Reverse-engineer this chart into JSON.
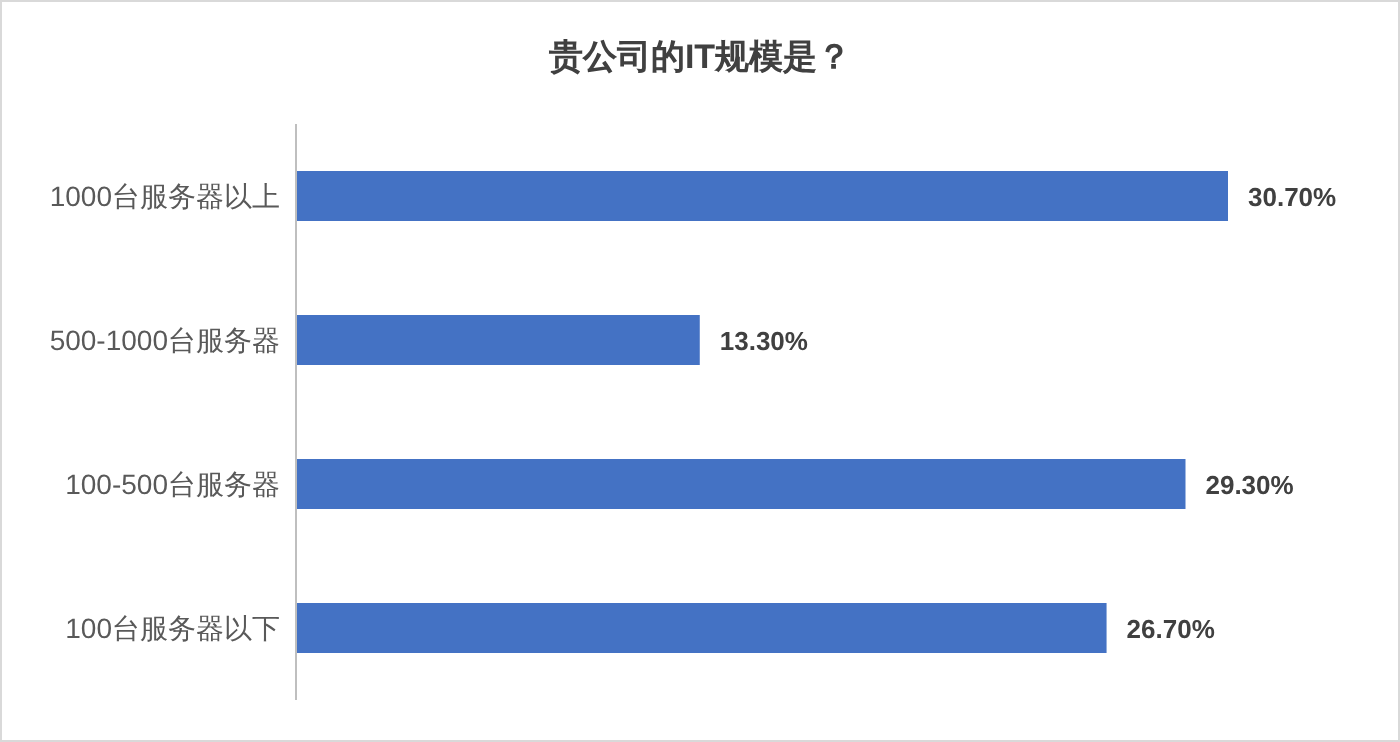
{
  "chart_data": {
    "type": "bar",
    "title": "贵公司的IT规模是？",
    "orientation": "horizontal",
    "categories": [
      "1000台服务器以上",
      "500-1000台服务器",
      "100-500台服务器",
      "100台服务器以下"
    ],
    "values": [
      30.7,
      13.3,
      29.3,
      26.7
    ],
    "value_labels": [
      "30.70%",
      "13.30%",
      "29.30%",
      "26.70%"
    ],
    "color": "#4472c4"
  }
}
